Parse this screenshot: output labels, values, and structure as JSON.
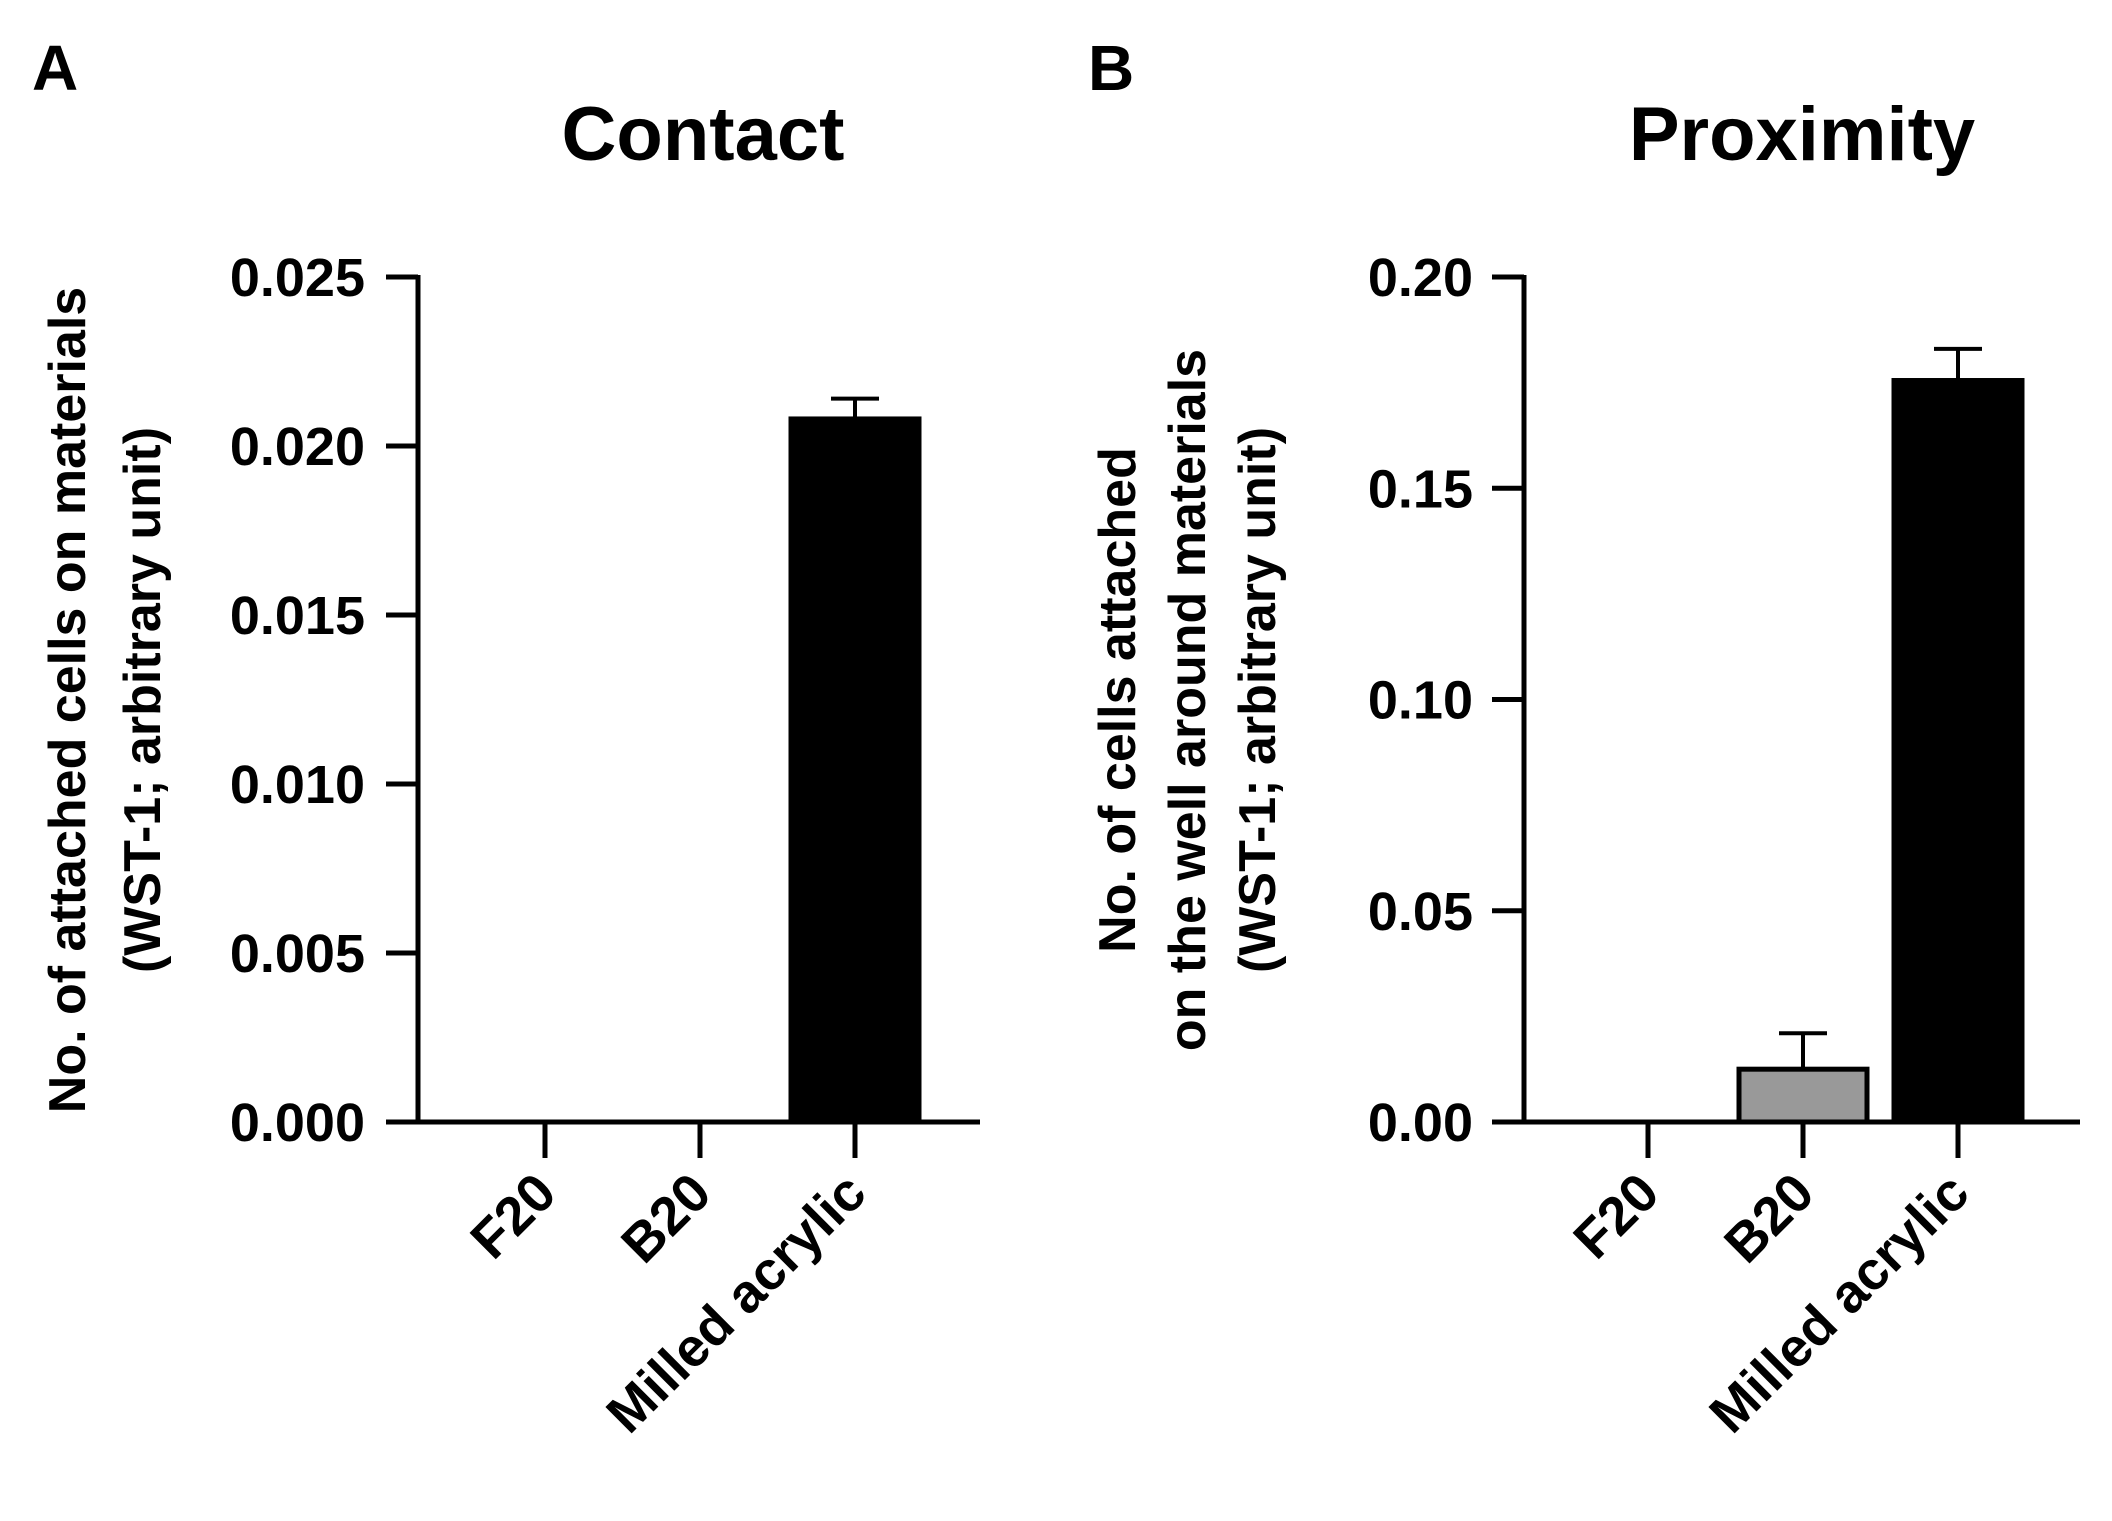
{
  "chart_data": [
    {
      "type": "bar",
      "panel_label": "A",
      "title": "Contact",
      "ylabel_lines": [
        "No. of attached cells on materials",
        "(WST-1; arbitrary unit)"
      ],
      "categories": [
        "F20",
        "B20",
        "Milled acrylic"
      ],
      "values": [
        0.0,
        0.0,
        0.0208
      ],
      "errors": [
        0.0,
        0.0,
        0.0006
      ],
      "colors": [
        "#000000",
        "#000000",
        "#000000"
      ],
      "ylim": [
        0,
        0.025
      ],
      "yticks": [
        "0.000",
        "0.005",
        "0.010",
        "0.015",
        "0.020",
        "0.025"
      ],
      "ytick_values": [
        0,
        0.005,
        0.01,
        0.015,
        0.02,
        0.025
      ]
    },
    {
      "type": "bar",
      "panel_label": "B",
      "title": "Proximity",
      "ylabel_lines": [
        "No. of cells attached",
        "on the well around materials",
        "(WST-1; arbitrary unit)"
      ],
      "categories": [
        "F20",
        "B20",
        "Milled acrylic"
      ],
      "values": [
        0.0,
        0.0125,
        0.1755
      ],
      "errors": [
        0.0,
        0.0085,
        0.0075
      ],
      "colors": [
        "#000000",
        "#999999",
        "#000000"
      ],
      "ylim": [
        0,
        0.2
      ],
      "yticks": [
        "0.00",
        "0.05",
        "0.10",
        "0.15",
        "0.20"
      ],
      "ytick_values": [
        0,
        0.05,
        0.1,
        0.15,
        0.2
      ]
    }
  ]
}
